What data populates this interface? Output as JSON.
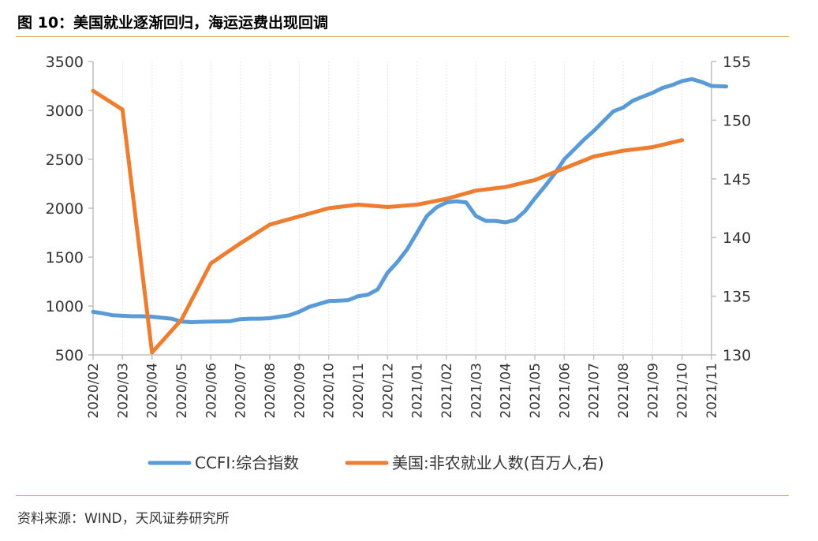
{
  "figure": {
    "title": "图 10：美国就业逐渐回归，海运运费出现回调",
    "source": "资料来源：WIND，天风证券研究所"
  },
  "colors": {
    "ccfi": "#5b9bd5",
    "payrolls": "#ed7d31",
    "axis": "#bfbfbf",
    "rule": "#d9a35a"
  },
  "chart_data": {
    "type": "line",
    "title": "图 10：美国就业逐渐回归，海运运费出现回调",
    "x_ticks": [
      "2020/02",
      "2020/03",
      "2020/04",
      "2020/05",
      "2020/06",
      "2020/07",
      "2020/08",
      "2020/09",
      "2020/10",
      "2020/11",
      "2020/12",
      "2021/01",
      "2021/02",
      "2021/03",
      "2021/04",
      "2021/05",
      "2021/06",
      "2021/07",
      "2021/08",
      "2021/09",
      "2021/10",
      "2021/11"
    ],
    "y_left": {
      "min": 500,
      "max": 3500,
      "ticks": [
        500,
        1000,
        1500,
        2000,
        2500,
        3000,
        3500
      ]
    },
    "y_right": {
      "min": 130,
      "max": 155,
      "ticks": [
        130,
        135,
        140,
        145,
        150,
        155
      ]
    },
    "legend": {
      "position": "bottom"
    },
    "series": [
      {
        "name": "CCFI:综合指数",
        "axis": "left",
        "points": [
          [
            "2020/02",
            940
          ],
          [
            "2020/02",
            925
          ],
          [
            "2020/02",
            905
          ],
          [
            "2020/03",
            900
          ],
          [
            "2020/03",
            895
          ],
          [
            "2020/03",
            895
          ],
          [
            "2020/04",
            890
          ],
          [
            "2020/04",
            880
          ],
          [
            "2020/04",
            870
          ],
          [
            "2020/05",
            840
          ],
          [
            "2020/05",
            835
          ],
          [
            "2020/05",
            838
          ],
          [
            "2020/06",
            840
          ],
          [
            "2020/06",
            842
          ],
          [
            "2020/06",
            845
          ],
          [
            "2020/07",
            865
          ],
          [
            "2020/07",
            870
          ],
          [
            "2020/07",
            870
          ],
          [
            "2020/08",
            875
          ],
          [
            "2020/08",
            890
          ],
          [
            "2020/08",
            905
          ],
          [
            "2020/09",
            940
          ],
          [
            "2020/09",
            990
          ],
          [
            "2020/09",
            1020
          ],
          [
            "2020/10",
            1050
          ],
          [
            "2020/10",
            1055
          ],
          [
            "2020/10",
            1060
          ],
          [
            "2020/11",
            1100
          ],
          [
            "2020/11",
            1115
          ],
          [
            "2020/11",
            1170
          ],
          [
            "2020/12",
            1340
          ],
          [
            "2020/12",
            1450
          ],
          [
            "2020/12",
            1580
          ],
          [
            "2021/01",
            1750
          ],
          [
            "2021/01",
            1920
          ],
          [
            "2021/01",
            2010
          ],
          [
            "2021/02",
            2060
          ],
          [
            "2021/02",
            2070
          ],
          [
            "2021/02",
            2060
          ],
          [
            "2021/03",
            1920
          ],
          [
            "2021/03",
            1870
          ],
          [
            "2021/03",
            1870
          ],
          [
            "2021/04",
            1855
          ],
          [
            "2021/04",
            1880
          ],
          [
            "2021/04",
            1970
          ],
          [
            "2021/05",
            2100
          ],
          [
            "2021/05",
            2220
          ],
          [
            "2021/05",
            2350
          ],
          [
            "2021/06",
            2500
          ],
          [
            "2021/06",
            2600
          ],
          [
            "2021/06",
            2700
          ],
          [
            "2021/07",
            2790
          ],
          [
            "2021/07",
            2890
          ],
          [
            "2021/07",
            2990
          ],
          [
            "2021/08",
            3030
          ],
          [
            "2021/08",
            3100
          ],
          [
            "2021/08",
            3140
          ],
          [
            "2021/09",
            3180
          ],
          [
            "2021/09",
            3230
          ],
          [
            "2021/09",
            3260
          ],
          [
            "2021/10",
            3300
          ],
          [
            "2021/10",
            3320
          ],
          [
            "2021/10",
            3290
          ],
          [
            "2021/11",
            3250
          ],
          [
            "2021/11",
            3245
          ]
        ]
      },
      {
        "name": "美国:非农就业人数(百万人,右)",
        "axis": "right",
        "points": [
          [
            "2020/02",
            152.5
          ],
          [
            "2020/03",
            150.9
          ],
          [
            "2020/04",
            130.2
          ],
          [
            "2020/05",
            133.0
          ],
          [
            "2020/06",
            137.8
          ],
          [
            "2020/07",
            139.5
          ],
          [
            "2020/08",
            141.1
          ],
          [
            "2020/09",
            141.8
          ],
          [
            "2020/10",
            142.5
          ],
          [
            "2020/11",
            142.8
          ],
          [
            "2020/12",
            142.6
          ],
          [
            "2021/01",
            142.8
          ],
          [
            "2021/02",
            143.3
          ],
          [
            "2021/03",
            144.0
          ],
          [
            "2021/04",
            144.3
          ],
          [
            "2021/05",
            144.9
          ],
          [
            "2021/06",
            145.9
          ],
          [
            "2021/07",
            146.9
          ],
          [
            "2021/08",
            147.4
          ],
          [
            "2021/09",
            147.7
          ],
          [
            "2021/10",
            148.3
          ]
        ]
      }
    ]
  }
}
